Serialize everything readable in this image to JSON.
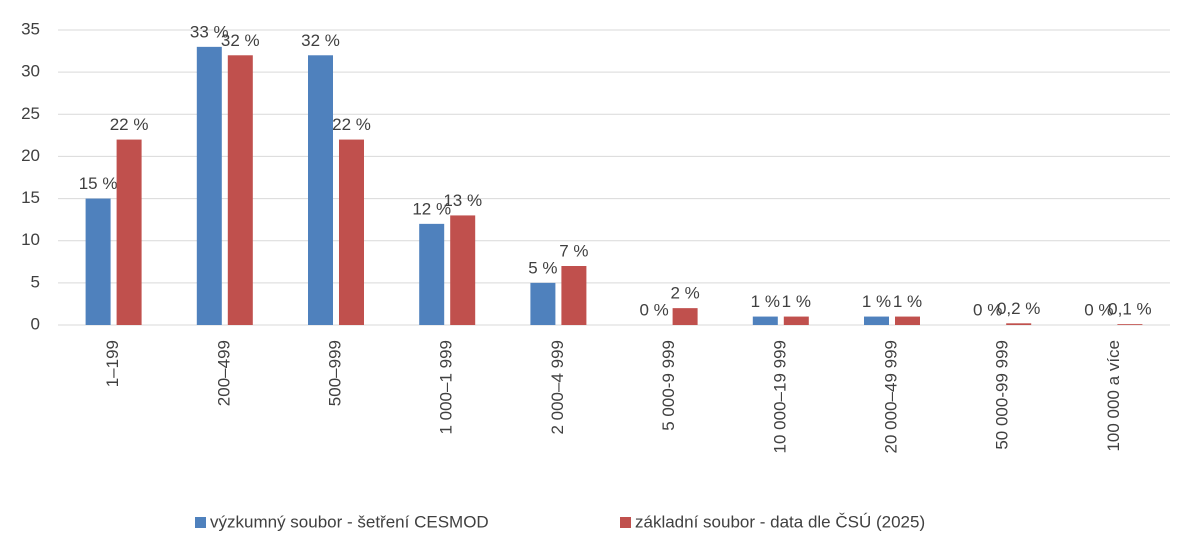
{
  "chart_data": {
    "type": "bar",
    "categories": [
      "1–199",
      "200–499",
      "500–999",
      "1 000–1 999",
      "2 000–4 999",
      "5 000-9 999",
      "10 000–19 999",
      "20 000–49 999",
      "50 000-99 999",
      "100 000 a více"
    ],
    "series": [
      {
        "name": "výzkumný soubor - šetření CESMOD",
        "color": "#4f81bd",
        "values": [
          15,
          33,
          32,
          12,
          5,
          0,
          1,
          1,
          0,
          0
        ],
        "value_labels": [
          "15 %",
          "33 %",
          "32 %",
          "12 %",
          "5 %",
          "0 %",
          "1 %",
          "1 %",
          "0 %",
          "0 %"
        ]
      },
      {
        "name": "základní soubor - data dle ČSÚ (2025)",
        "color": "#c0504d",
        "values": [
          22,
          32,
          22,
          13,
          7,
          2,
          1,
          1,
          0.2,
          0.1
        ],
        "value_labels": [
          "22 %",
          "32 %",
          "22 %",
          "13 %",
          "7 %",
          "2 %",
          "1 %",
          "1 %",
          "0,2 %",
          "0,1 %"
        ]
      }
    ],
    "ylim": [
      0,
      35
    ],
    "yticks": [
      0,
      5,
      10,
      15,
      20,
      25,
      30,
      35
    ],
    "grid": true,
    "legend": "bottom"
  }
}
